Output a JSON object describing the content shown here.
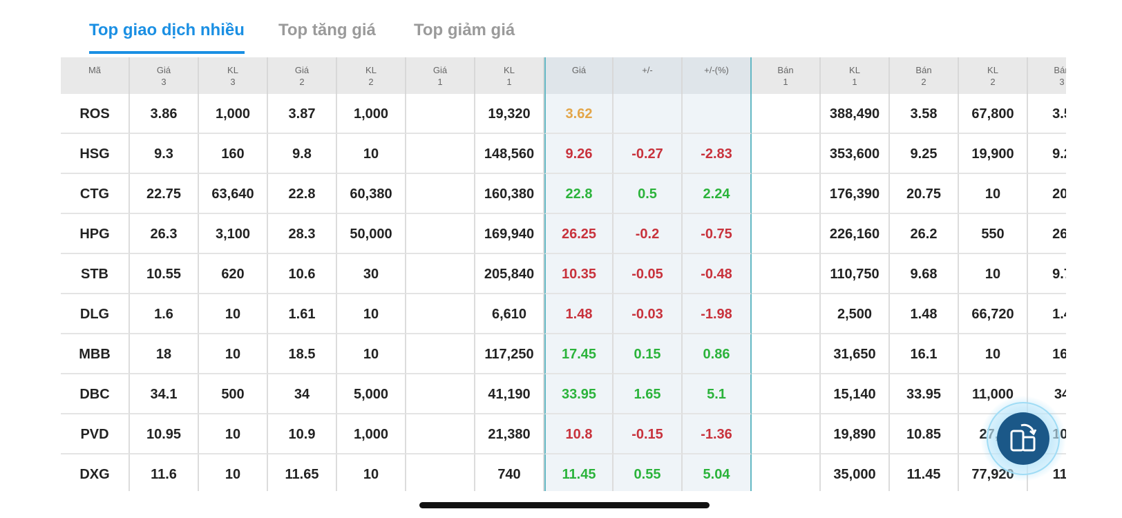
{
  "tabs": [
    "Top giao dịch nhiều",
    "Top tăng giá",
    "Top giảm giá"
  ],
  "active_tab": 0,
  "table": {
    "columns": [
      [
        "Mã"
      ],
      [
        "Giá",
        "3"
      ],
      [
        "KL",
        "3"
      ],
      [
        "Giá",
        "2"
      ],
      [
        "KL",
        "2"
      ],
      [
        "Giá",
        "1"
      ],
      [
        "KL",
        "1"
      ],
      [
        "Giá"
      ],
      [
        "+/-"
      ],
      [
        "+/-(%)"
      ],
      [
        "Bán",
        "1"
      ],
      [
        "KL",
        "1"
      ],
      [
        "Bán",
        "2"
      ],
      [
        "KL",
        "2"
      ],
      [
        "Bán",
        "3"
      ]
    ],
    "rows": [
      {
        "color": "#e3a548",
        "cells": [
          "ROS",
          "3.86",
          "1,000",
          "3.87",
          "1,000",
          null,
          "19,320",
          "3.62",
          null,
          null,
          null,
          "388,490",
          "3.58",
          "67,800",
          "3.5"
        ]
      },
      {
        "color": "#c8323c",
        "cells": [
          "HSG",
          "9.3",
          "160",
          "9.8",
          "10",
          null,
          "148,560",
          "9.26",
          "-0.27",
          "-2.83",
          null,
          "353,600",
          "9.25",
          "19,900",
          "9.2"
        ]
      },
      {
        "color": "#2bb33b",
        "cells": [
          "CTG",
          "22.75",
          "63,640",
          "22.8",
          "60,380",
          null,
          "160,380",
          "22.8",
          "0.5",
          "2.24",
          null,
          "176,390",
          "20.75",
          "10",
          "20."
        ]
      },
      {
        "color": "#c8323c",
        "cells": [
          "HPG",
          "26.3",
          "3,100",
          "28.3",
          "50,000",
          null,
          "169,940",
          "26.25",
          "-0.2",
          "-0.75",
          null,
          "226,160",
          "26.2",
          "550",
          "26."
        ]
      },
      {
        "color": "#c8323c",
        "cells": [
          "STB",
          "10.55",
          "620",
          "10.6",
          "30",
          null,
          "205,840",
          "10.35",
          "-0.05",
          "-0.48",
          null,
          "110,750",
          "9.68",
          "10",
          "9.7"
        ]
      },
      {
        "color": "#c8323c",
        "cells": [
          "DLG",
          "1.6",
          "10",
          "1.61",
          "10",
          null,
          "6,610",
          "1.48",
          "-0.03",
          "-1.98",
          null,
          "2,500",
          "1.48",
          "66,720",
          "1.4"
        ]
      },
      {
        "color": "#2bb33b",
        "cells": [
          "MBB",
          "18",
          "10",
          "18.5",
          "10",
          null,
          "117,250",
          "17.45",
          "0.15",
          "0.86",
          null,
          "31,650",
          "16.1",
          "10",
          "16."
        ]
      },
      {
        "color": "#2bb33b",
        "cells": [
          "DBC",
          "34.1",
          "500",
          "34",
          "5,000",
          null,
          "41,190",
          "33.95",
          "1.65",
          "5.1",
          null,
          "15,140",
          "33.95",
          "11,000",
          "34"
        ]
      },
      {
        "color": "#c8323c",
        "cells": [
          "PVD",
          "10.95",
          "10",
          "10.9",
          "1,000",
          null,
          "21,380",
          "10.8",
          "-0.15",
          "-1.36",
          null,
          "19,890",
          "10.85",
          "27,6",
          "10."
        ]
      },
      {
        "color": "#2bb33b",
        "cells": [
          "DXG",
          "11.6",
          "10",
          "11.65",
          "10",
          null,
          "740",
          "11.45",
          "0.55",
          "5.04",
          null,
          "35,000",
          "11.45",
          "77,920",
          "11."
        ]
      }
    ]
  }
}
